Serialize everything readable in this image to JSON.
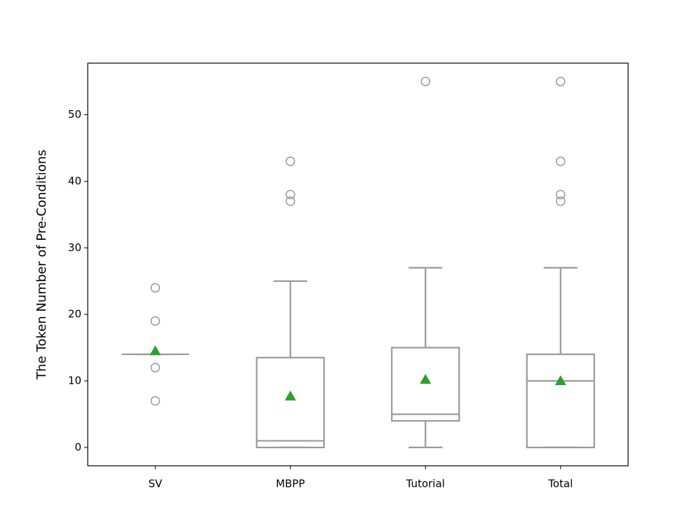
{
  "chart_data": {
    "type": "box",
    "y_label": "The Token Number of Pre-Conditions",
    "categories": [
      "SV",
      "MBPP",
      "Tutorial",
      "Total"
    ],
    "boxes": [
      {
        "min": 14,
        "q1": 14,
        "median": 14,
        "q3": 14,
        "max": 14,
        "mean": 14.5,
        "outliers": [
          24,
          19,
          12,
          7
        ]
      },
      {
        "min": 0,
        "q1": 0,
        "median": 1,
        "q3": 13.5,
        "max": 25,
        "mean": 7.7,
        "outliers": [
          37,
          38,
          43
        ]
      },
      {
        "min": 0,
        "q1": 4,
        "median": 5,
        "q3": 15,
        "max": 27,
        "mean": 10.2,
        "outliers": [
          55
        ]
      },
      {
        "min": 0,
        "q1": 0,
        "median": 10,
        "q3": 14,
        "max": 27,
        "mean": 10,
        "outliers": [
          37,
          38,
          43,
          55
        ]
      }
    ],
    "box_color": "#999999",
    "mean_color": "#2ca02c",
    "ylim": [
      -2.75,
      57.75
    ],
    "yticks": [
      0,
      10,
      20,
      30,
      40,
      50
    ]
  }
}
